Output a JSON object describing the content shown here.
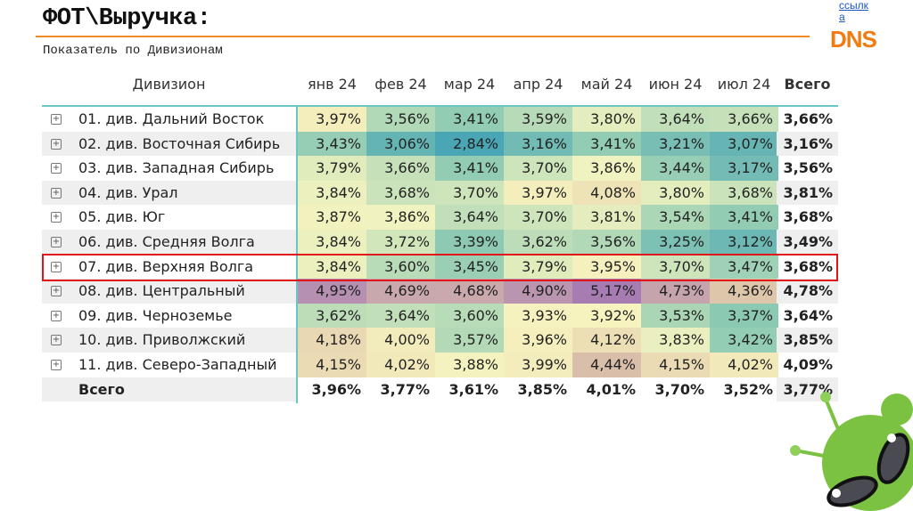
{
  "header": {
    "title": "ФОТ\\Выручка:",
    "subtitle": "Показатель по Дивизионам",
    "link_line1": "ссылк",
    "link_line2": "а",
    "logo": "DNS"
  },
  "table": {
    "columns": [
      "Дивизион",
      "янв 24",
      "фев 24",
      "мар 24",
      "апр 24",
      "май 24",
      "июн 24",
      "июл 24",
      "Всего"
    ],
    "rows": [
      {
        "name": "01. див. Дальний Восток",
        "values": [
          "3,97%",
          "3,56%",
          "3,41%",
          "3,59%",
          "3,80%",
          "3,64%",
          "3,66%"
        ],
        "total": "3,66%"
      },
      {
        "name": "02. див. Восточная Сибирь",
        "values": [
          "3,43%",
          "3,06%",
          "2,84%",
          "3,16%",
          "3,41%",
          "3,21%",
          "3,07%"
        ],
        "total": "3,16%"
      },
      {
        "name": "03. див. Западная Сибирь",
        "values": [
          "3,79%",
          "3,66%",
          "3,41%",
          "3,70%",
          "3,86%",
          "3,44%",
          "3,17%"
        ],
        "total": "3,56%"
      },
      {
        "name": "04. див. Урал",
        "values": [
          "3,84%",
          "3,68%",
          "3,70%",
          "3,97%",
          "4,08%",
          "3,80%",
          "3,68%"
        ],
        "total": "3,81%"
      },
      {
        "name": "05. див. Юг",
        "values": [
          "3,87%",
          "3,86%",
          "3,64%",
          "3,70%",
          "3,81%",
          "3,54%",
          "3,41%"
        ],
        "total": "3,68%"
      },
      {
        "name": "06. див. Средняя Волга",
        "values": [
          "3,84%",
          "3,72%",
          "3,39%",
          "3,62%",
          "3,56%",
          "3,25%",
          "3,12%"
        ],
        "total": "3,49%"
      },
      {
        "name": "07. див. Верхняя Волга",
        "values": [
          "3,84%",
          "3,60%",
          "3,45%",
          "3,79%",
          "3,95%",
          "3,70%",
          "3,47%"
        ],
        "total": "3,68%"
      },
      {
        "name": "08. див. Центральный",
        "values": [
          "4,95%",
          "4,69%",
          "4,68%",
          "4,90%",
          "5,17%",
          "4,73%",
          "4,36%"
        ],
        "total": "4,78%"
      },
      {
        "name": "09. див. Черноземье",
        "values": [
          "3,62%",
          "3,64%",
          "3,60%",
          "3,93%",
          "3,92%",
          "3,53%",
          "3,37%"
        ],
        "total": "3,64%"
      },
      {
        "name": "10. див. Приволжский",
        "values": [
          "4,18%",
          "4,00%",
          "3,57%",
          "3,96%",
          "4,12%",
          "3,83%",
          "3,42%"
        ],
        "total": "3,85%"
      },
      {
        "name": "11. див. Северо-Западный",
        "values": [
          "4,15%",
          "4,02%",
          "3,88%",
          "3,99%",
          "4,44%",
          "4,15%",
          "4,02%"
        ],
        "total": "4,09%"
      }
    ],
    "grand_total": {
      "name": "Всего",
      "values": [
        "3,96%",
        "3,77%",
        "3,61%",
        "3,85%",
        "4,01%",
        "3,70%",
        "3,52%"
      ],
      "total": "3,77%"
    },
    "highlighted_row": "07. див. Верхняя Волга"
  },
  "colors": {
    "accent": "#f08a24",
    "highlight": "#e0161b",
    "scale_low": "#4aa5b5",
    "scale_mid": "#f8f5c0",
    "scale_high": "#a77cb3"
  }
}
